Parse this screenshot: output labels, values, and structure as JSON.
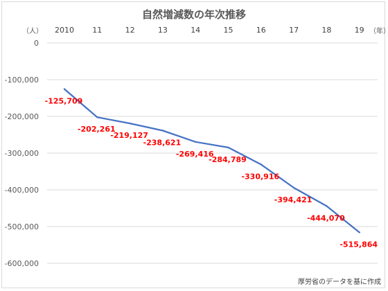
{
  "chart_data": {
    "type": "line",
    "title": "自然増減数の年次推移",
    "x_unit_label": "（年）",
    "y_unit_label": "（人）",
    "categories": [
      "2010",
      "11",
      "12",
      "13",
      "14",
      "15",
      "16",
      "17",
      "18",
      "19"
    ],
    "series": [
      {
        "values": [
          -125709,
          -202261,
          -219127,
          -238621,
          -269416,
          -284789,
          -330916,
          -394421,
          -444070,
          -515864
        ],
        "color": "#4472c4"
      }
    ],
    "data_labels": [
      "-125,709",
      "-202,261",
      "-219,127",
      "-238,621",
      "-269,416",
      "-284,789",
      "-330,916",
      "-394,421",
      "-444,070",
      "-515,864"
    ],
    "data_label_color": "#ff0000",
    "ylim": [
      -600000,
      0
    ],
    "y_ticks": [
      0,
      -100000,
      -200000,
      -300000,
      -400000,
      -500000,
      -600000
    ],
    "y_tick_labels": [
      "0",
      "-100,000",
      "-200,000",
      "-300,000",
      "-400,000",
      "-500,000",
      "-600,000"
    ],
    "x_axis_position": "top",
    "grid": true
  },
  "source_note": "厚労省のデータを基に作成"
}
